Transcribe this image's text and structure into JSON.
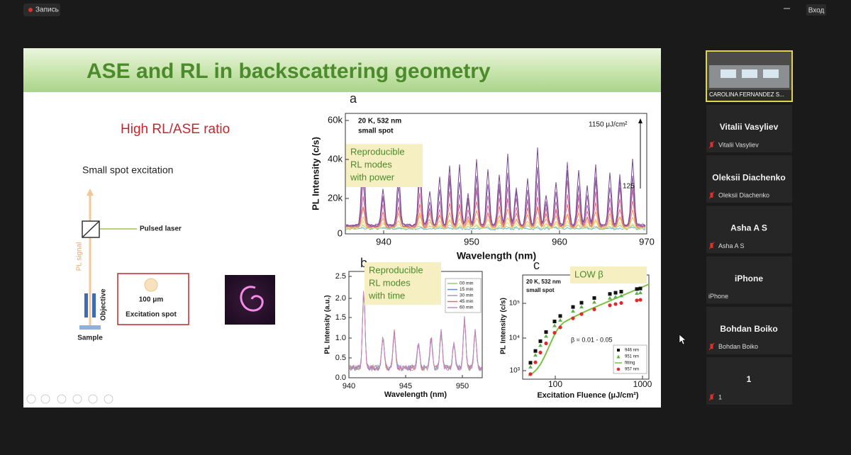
{
  "top_bar": {
    "recording": "Запись",
    "sign_in": "Вход"
  },
  "slide": {
    "title": "ASE and RL in backscattering geometry",
    "subtitle": "High RL/ASE ratio",
    "setup": {
      "heading": "Small spot excitation",
      "laser": "Pulsed laser",
      "signal": "PL signal",
      "objective": "Objective",
      "sample": "Sample",
      "spot_size": "100 μm",
      "spot_label": "Excitation spot"
    },
    "panel_a": {
      "letter": "a",
      "condition": "20 K, 532 nm",
      "spot": "small spot",
      "power_max": "1150 μJ/cm²",
      "power_min": "125",
      "note": [
        "Reproducible",
        "RL modes",
        "with power"
      ],
      "xlabel": "Wavelength (nm)",
      "ylabel": "PL Intensity (c/s)",
      "xticks": [
        "940",
        "950",
        "960",
        "970"
      ],
      "yticks": [
        "0",
        "20k",
        "40k",
        "60k"
      ]
    },
    "panel_b": {
      "letter": "b",
      "note": [
        "Reproducible",
        "RL modes",
        "with time"
      ],
      "xlabel": "Wavelength (nm)",
      "ylabel": "PL Intensity (a.u.)",
      "xticks": [
        "940",
        "945",
        "950"
      ],
      "yticks": [
        "0.0",
        "0.5",
        "1.0",
        "1.5",
        "2.0",
        "2.5"
      ],
      "legend": [
        "00 min",
        "15 min",
        "30 min",
        "45 min",
        "60 min"
      ]
    },
    "panel_c": {
      "letter": "c",
      "condition": "20 K, 532 nm",
      "spot": "small spot",
      "note": "LOW β",
      "beta": "β = 0.01 - 0.05",
      "xlabel": "Excitation Fluence (μJ/cm²)",
      "ylabel": "PL Intensity (c/s)",
      "xticks": [
        "100",
        "1000"
      ],
      "yticks": [
        "10³",
        "10⁴",
        "10⁵"
      ],
      "legend": [
        "946 nm",
        "951 nm",
        "fitting",
        "957 nm"
      ]
    }
  },
  "participants": {
    "speaker": "CAROLINA FERNANDEZ S...",
    "list": [
      "Vitalii Vasyliev",
      "Oleksii Diachenko",
      "Asha A S",
      "iPhone",
      "Bohdan Boiko",
      "1"
    ]
  }
}
